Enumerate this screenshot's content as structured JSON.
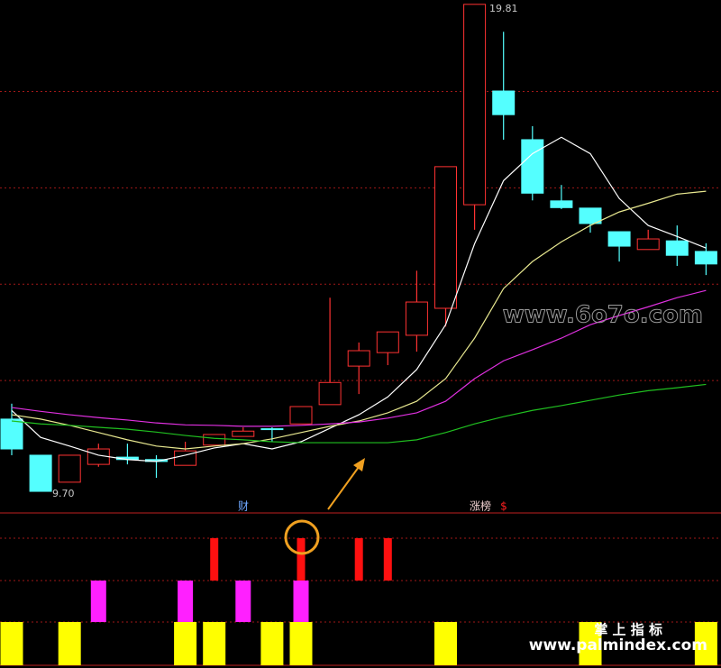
{
  "chart_data": {
    "type": "candlestick",
    "ylim": [
      9.42,
      19.9
    ],
    "yticks": [
      12,
      14,
      16,
      18
    ],
    "grid": true,
    "up_color": "#ff3232",
    "down_color": "#54ffff",
    "open": [
      11.2,
      10.45,
      9.89,
      10.26,
      10.41,
      10.36,
      10.24,
      10.66,
      10.84,
      11.0,
      11.1,
      11.5,
      12.3,
      12.58,
      12.94,
      13.5,
      15.65,
      18.01,
      17.0,
      15.73,
      15.58,
      15.09,
      14.72,
      14.9,
      14.68
    ],
    "high": [
      11.52,
      10.45,
      10.45,
      10.69,
      10.69,
      10.45,
      10.73,
      10.88,
      11.03,
      11.03,
      11.46,
      13.72,
      12.79,
      13.01,
      14.28,
      16.44,
      19.81,
      19.24,
      17.28,
      16.06,
      15.58,
      15.09,
      15.13,
      15.22,
      14.85
    ],
    "low": [
      10.45,
      9.7,
      9.89,
      10.21,
      10.26,
      9.98,
      10.24,
      10.66,
      10.84,
      10.73,
      11.1,
      11.5,
      11.72,
      12.32,
      12.6,
      13.12,
      15.13,
      17.0,
      15.74,
      15.56,
      15.07,
      14.47,
      14.72,
      14.38,
      14.19
    ],
    "close": [
      10.58,
      9.7,
      10.45,
      10.58,
      10.36,
      10.32,
      10.54,
      10.88,
      10.95,
      10.99,
      11.46,
      11.96,
      12.62,
      13.01,
      13.63,
      16.44,
      19.81,
      17.52,
      15.89,
      15.59,
      15.26,
      14.79,
      14.94,
      14.6,
      14.42
    ],
    "high_label": "19.81",
    "low_label": "9.70",
    "series": [
      {
        "color": "#ffffff",
        "values": [
          11.38,
          10.82,
          10.64,
          10.45,
          10.36,
          10.32,
          10.45,
          10.6,
          10.69,
          10.58,
          10.73,
          11.01,
          11.29,
          11.66,
          12.23,
          13.16,
          14.84,
          16.15,
          16.71,
          17.05,
          16.71,
          15.78,
          15.22,
          14.99,
          14.75
        ]
      },
      {
        "color": "#e8e890",
        "values": [
          11.29,
          11.2,
          11.07,
          10.92,
          10.77,
          10.64,
          10.58,
          10.64,
          10.69,
          10.79,
          10.92,
          11.05,
          11.16,
          11.33,
          11.57,
          12.04,
          12.88,
          13.91,
          14.47,
          14.88,
          15.22,
          15.5,
          15.68,
          15.87,
          15.93
        ]
      },
      {
        "color": "#e030e0",
        "values": [
          11.44,
          11.36,
          11.29,
          11.23,
          11.18,
          11.12,
          11.08,
          11.07,
          11.05,
          11.05,
          11.07,
          11.1,
          11.14,
          11.22,
          11.33,
          11.57,
          12.04,
          12.41,
          12.64,
          12.88,
          13.16,
          13.35,
          13.53,
          13.72,
          13.87
        ]
      },
      {
        "color": "#20c020",
        "values": [
          11.16,
          11.1,
          11.07,
          11.03,
          10.99,
          10.93,
          10.86,
          10.8,
          10.77,
          10.73,
          10.71,
          10.71,
          10.71,
          10.71,
          10.77,
          10.92,
          11.1,
          11.25,
          11.38,
          11.48,
          11.59,
          11.7,
          11.79,
          11.85,
          11.92
        ]
      }
    ],
    "indicator": {
      "labels": [
        "财",
        "涨榜",
        "$"
      ],
      "signals": [
        {
          "color": "#ff1010",
          "values": [
            0,
            0,
            0,
            0,
            0,
            0,
            0,
            1,
            0,
            0,
            1,
            0,
            1,
            1,
            0,
            0,
            0,
            0,
            0,
            0,
            0,
            0,
            0,
            0,
            0
          ]
        },
        {
          "color": "#ff20ff",
          "values": [
            0,
            0,
            0,
            1,
            0,
            0,
            1,
            0,
            1,
            0,
            1,
            0,
            0,
            0,
            0,
            0,
            0,
            0,
            0,
            0,
            0,
            0,
            0,
            0,
            0
          ]
        },
        {
          "color": "#ffff00",
          "values": [
            1,
            0,
            1,
            0,
            0,
            0,
            1,
            1,
            0,
            1,
            1,
            0,
            0,
            0,
            0,
            1,
            0,
            0,
            0,
            0,
            1,
            0,
            0,
            0,
            1
          ]
        }
      ]
    }
  },
  "watermarks": [
    "www.6o7o.com",
    "掌 上 指 标",
    "www.palmindex.com"
  ]
}
